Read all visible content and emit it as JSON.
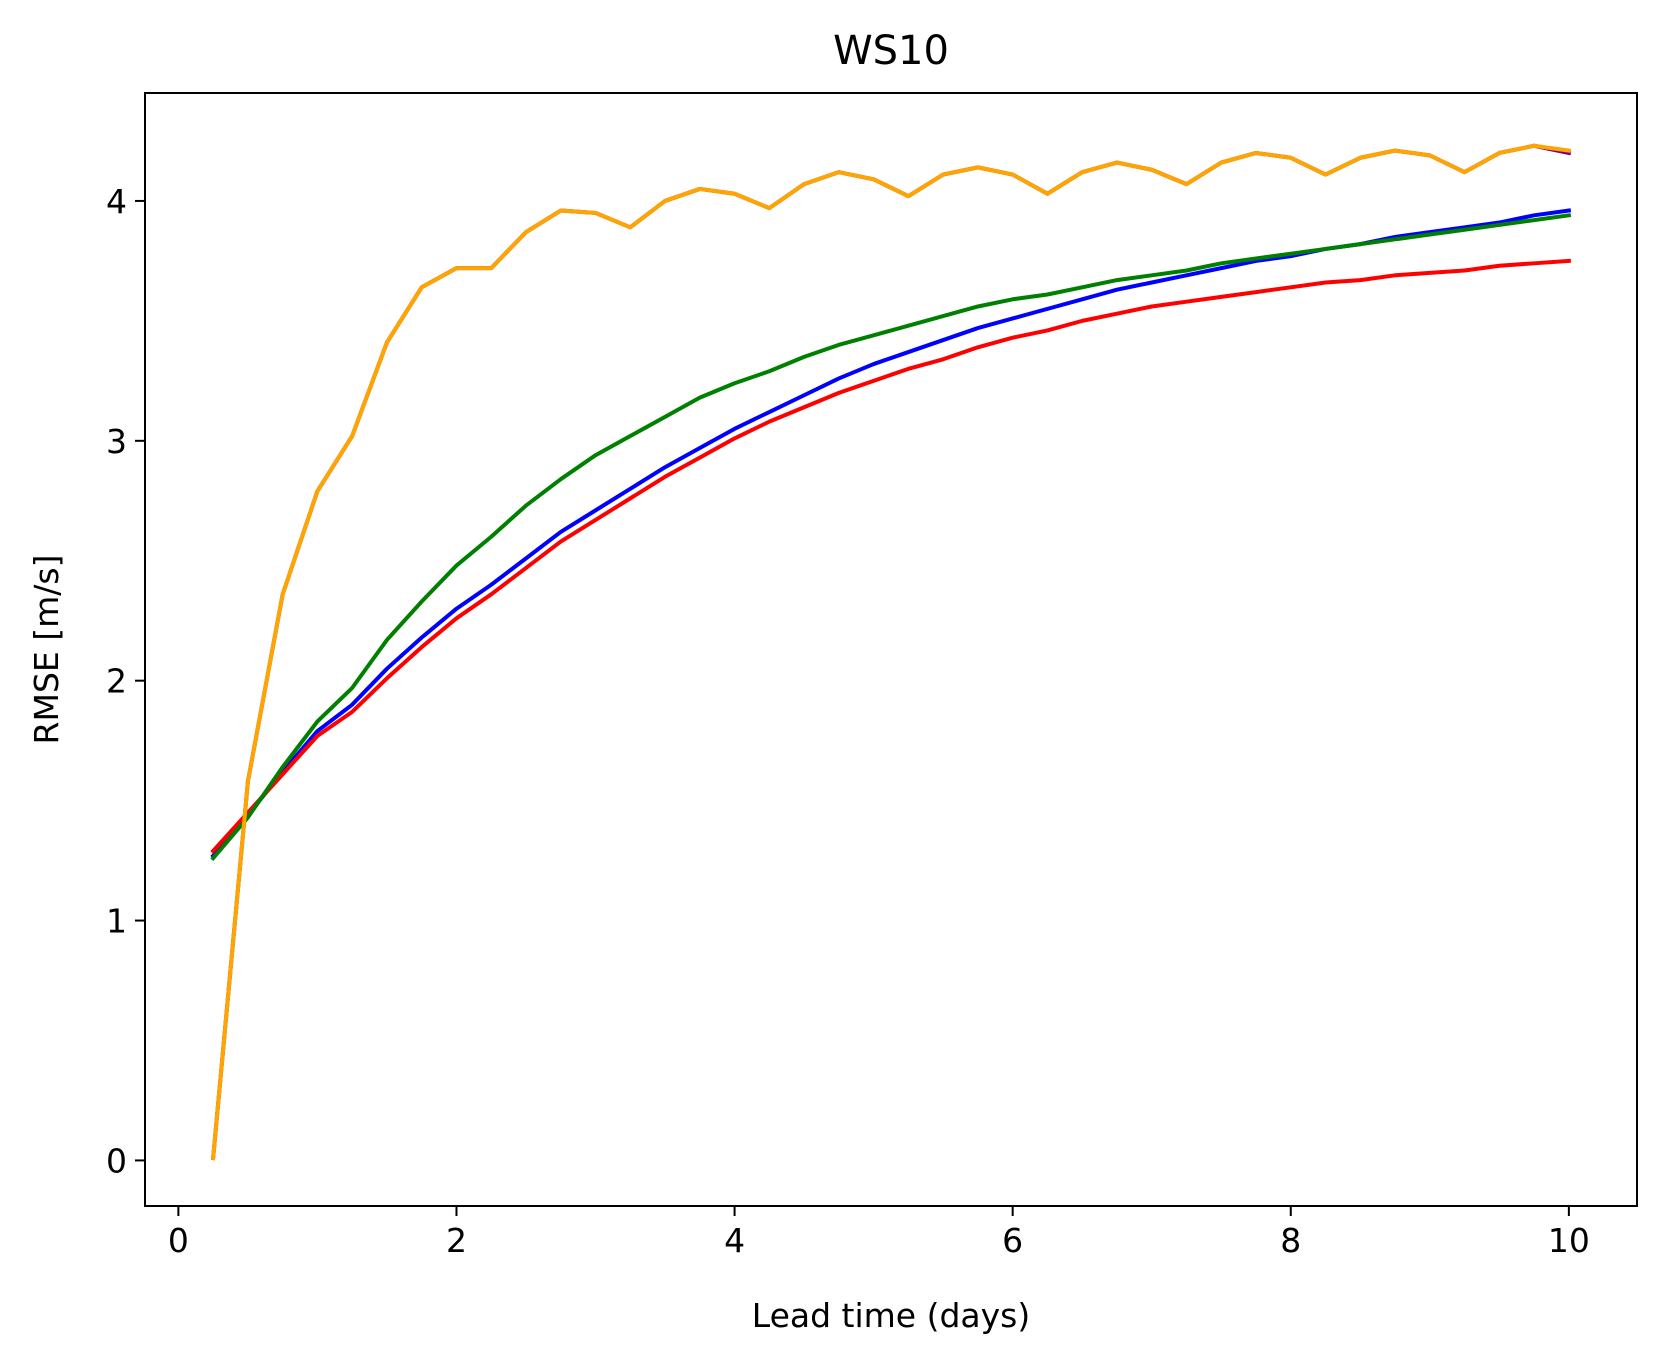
{
  "chart_data": {
    "type": "line",
    "title": "WS10",
    "xlabel": "Lead time (days)",
    "ylabel": "RMSE [m/s]",
    "xlim": [
      -0.24,
      10.49
    ],
    "ylim": [
      -0.19,
      4.45
    ],
    "xticks": [
      {
        "value": 0,
        "label": "0"
      },
      {
        "value": 2,
        "label": "2"
      },
      {
        "value": 4,
        "label": "4"
      },
      {
        "value": 6,
        "label": "6"
      },
      {
        "value": 8,
        "label": "8"
      },
      {
        "value": 10,
        "label": "10"
      }
    ],
    "yticks": [
      {
        "value": 0,
        "label": "0"
      },
      {
        "value": 1,
        "label": "1"
      },
      {
        "value": 2,
        "label": "2"
      },
      {
        "value": 3,
        "label": "3"
      },
      {
        "value": 4,
        "label": "4"
      }
    ],
    "grid": false,
    "legend": "none",
    "series": [
      {
        "color": "#800080",
        "x": [
          0.25,
          0.5,
          0.75,
          1,
          1.25,
          1.5,
          1.75,
          2,
          2.25,
          2.5,
          2.75,
          3,
          3.25,
          3.5,
          3.75,
          4,
          4.25,
          4.5,
          4.75,
          5,
          5.25,
          5.5,
          5.75,
          6,
          6.25,
          6.5,
          6.75,
          7,
          7.25,
          7.5,
          7.75,
          8,
          8.25,
          8.5,
          8.75,
          9,
          9.25,
          9.5,
          9.75,
          10
        ],
        "values": [
          0.01,
          1.58,
          2.36,
          2.79,
          3.02,
          3.41,
          3.64,
          3.72,
          3.72,
          3.87,
          3.96,
          3.95,
          3.89,
          4.0,
          4.05,
          4.03,
          3.97,
          4.07,
          4.12,
          4.09,
          4.02,
          4.11,
          4.14,
          4.11,
          4.03,
          4.12,
          4.16,
          4.13,
          4.07,
          4.16,
          4.2,
          4.18,
          4.11,
          4.18,
          4.21,
          4.19,
          4.12,
          4.2,
          4.23,
          4.2
        ]
      },
      {
        "color": "#0000ff",
        "x": [
          0.25,
          0.5,
          0.75,
          1,
          1.25,
          1.5,
          1.75,
          2,
          2.25,
          2.5,
          2.75,
          3,
          3.25,
          3.5,
          3.75,
          4,
          4.25,
          4.5,
          4.75,
          5,
          5.25,
          5.5,
          5.75,
          6,
          6.25,
          6.5,
          6.75,
          7,
          7.25,
          7.5,
          7.75,
          8,
          8.25,
          8.5,
          8.75,
          9,
          9.25,
          9.5,
          9.75,
          10
        ],
        "values": [
          1.27,
          1.44,
          1.62,
          1.79,
          1.9,
          2.05,
          2.18,
          2.3,
          2.4,
          2.51,
          2.62,
          2.71,
          2.8,
          2.89,
          2.97,
          3.05,
          3.12,
          3.19,
          3.26,
          3.32,
          3.37,
          3.42,
          3.47,
          3.51,
          3.55,
          3.59,
          3.63,
          3.66,
          3.69,
          3.72,
          3.75,
          3.77,
          3.8,
          3.82,
          3.85,
          3.87,
          3.89,
          3.91,
          3.94,
          3.96
        ]
      },
      {
        "color": "#ff0000",
        "x": [
          0.25,
          0.5,
          0.75,
          1,
          1.25,
          1.5,
          1.75,
          2,
          2.25,
          2.5,
          2.75,
          3,
          3.25,
          3.5,
          3.75,
          4,
          4.25,
          4.5,
          4.75,
          5,
          5.25,
          5.5,
          5.75,
          6,
          6.25,
          6.5,
          6.75,
          7,
          7.25,
          7.5,
          7.75,
          8,
          8.25,
          8.5,
          8.75,
          9,
          9.25,
          9.5,
          9.75,
          10
        ],
        "values": [
          1.29,
          1.45,
          1.61,
          1.77,
          1.87,
          2.01,
          2.14,
          2.26,
          2.36,
          2.47,
          2.58,
          2.67,
          2.76,
          2.85,
          2.93,
          3.01,
          3.08,
          3.14,
          3.2,
          3.25,
          3.3,
          3.34,
          3.39,
          3.43,
          3.46,
          3.5,
          3.53,
          3.56,
          3.58,
          3.6,
          3.62,
          3.64,
          3.66,
          3.67,
          3.69,
          3.7,
          3.71,
          3.73,
          3.74,
          3.75
        ]
      },
      {
        "color": "#008000",
        "x": [
          0.25,
          0.5,
          0.75,
          1,
          1.25,
          1.5,
          1.75,
          2,
          2.25,
          2.5,
          2.75,
          3,
          3.25,
          3.5,
          3.75,
          4,
          4.25,
          4.5,
          4.75,
          5,
          5.25,
          5.5,
          5.75,
          6,
          6.25,
          6.5,
          6.75,
          7,
          7.25,
          7.5,
          7.75,
          8,
          8.25,
          8.5,
          8.75,
          9,
          9.25,
          9.5,
          9.75,
          10
        ],
        "values": [
          1.26,
          1.43,
          1.64,
          1.83,
          1.97,
          2.17,
          2.33,
          2.48,
          2.6,
          2.73,
          2.84,
          2.94,
          3.02,
          3.1,
          3.18,
          3.24,
          3.29,
          3.35,
          3.4,
          3.44,
          3.48,
          3.52,
          3.56,
          3.59,
          3.61,
          3.64,
          3.67,
          3.69,
          3.71,
          3.74,
          3.76,
          3.78,
          3.8,
          3.82,
          3.84,
          3.86,
          3.88,
          3.9,
          3.92,
          3.94
        ]
      },
      {
        "color": "#ffa500",
        "x": [
          0.25,
          0.5,
          0.75,
          1,
          1.25,
          1.5,
          1.75,
          2,
          2.25,
          2.5,
          2.75,
          3,
          3.25,
          3.5,
          3.75,
          4,
          4.25,
          4.5,
          4.75,
          5,
          5.25,
          5.5,
          5.75,
          6,
          6.25,
          6.5,
          6.75,
          7,
          7.25,
          7.5,
          7.75,
          8,
          8.25,
          8.5,
          8.75,
          9,
          9.25,
          9.5,
          9.75,
          10
        ],
        "values": [
          0.01,
          1.58,
          2.36,
          2.79,
          3.02,
          3.41,
          3.64,
          3.72,
          3.72,
          3.87,
          3.96,
          3.95,
          3.89,
          4.0,
          4.05,
          4.03,
          3.97,
          4.07,
          4.12,
          4.09,
          4.02,
          4.11,
          4.14,
          4.11,
          4.03,
          4.12,
          4.16,
          4.13,
          4.07,
          4.16,
          4.2,
          4.18,
          4.11,
          4.18,
          4.21,
          4.19,
          4.12,
          4.2,
          4.23,
          4.21
        ]
      }
    ]
  }
}
